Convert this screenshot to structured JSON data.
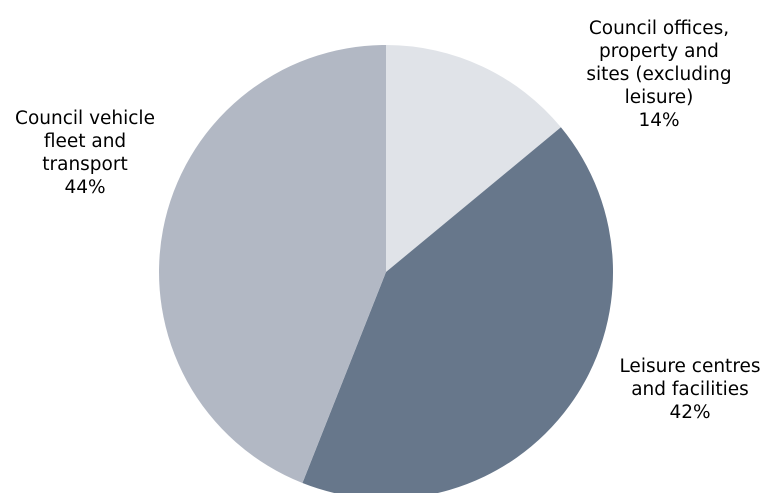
{
  "chart_data": {
    "type": "pie",
    "slices": [
      {
        "label_lines": [
          "Council offices,",
          "property and",
          "sites (excluding",
          "leisure)"
        ],
        "value": 14,
        "value_label": "14%",
        "color": "#e0e3e8"
      },
      {
        "label_lines": [
          "Leisure centres",
          "and facilities"
        ],
        "value": 42,
        "value_label": "42%",
        "color": "#67778b"
      },
      {
        "label_lines": [
          "Council vehicle",
          "fleet and",
          "transport"
        ],
        "value": 44,
        "value_label": "44%",
        "color": "#b2b8c4"
      }
    ],
    "start_angle_deg": 0,
    "direction": "clockwise",
    "legend": "none",
    "label_placement": "outside"
  }
}
